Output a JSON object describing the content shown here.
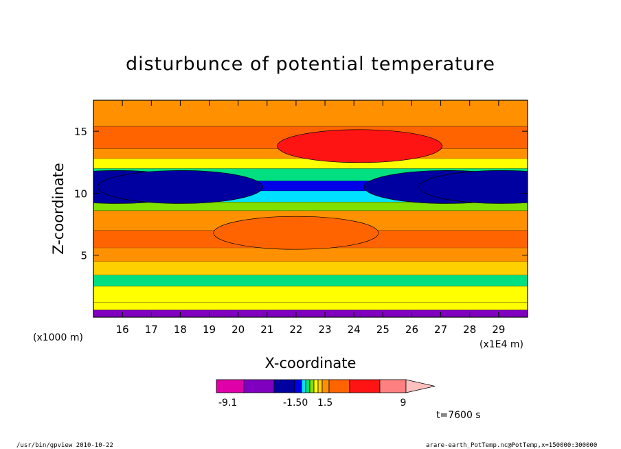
{
  "chart_data": {
    "type": "heatmap",
    "title": "disturbunce of potential temperature",
    "xlabel": "X-coordinate",
    "ylabel": "Z-coordinate",
    "xlim": [
      150000,
      300000
    ],
    "ylim": [
      0,
      17.5
    ],
    "x_ticks": [
      16,
      17,
      18,
      19,
      20,
      21,
      22,
      23,
      24,
      25,
      26,
      27,
      28,
      29
    ],
    "y_ticks": [
      5,
      10,
      15
    ],
    "x_unit": "(x1E4 m)",
    "y_unit": "(x1000 m)",
    "colorbar": {
      "labels": [
        "-9.1",
        "-1.50",
        "1.5",
        "9"
      ],
      "levels": [
        -9.1,
        -6,
        -4.5,
        -3,
        -1.5,
        -1.0,
        -0.5,
        0,
        0.5,
        1.0,
        1.5,
        3,
        4.5,
        6,
        9
      ],
      "colors": [
        "#e000a8",
        "#8000c0",
        "#0000a0",
        "#0000e8",
        "#00e0ff",
        "#00e080",
        "#80e000",
        "#ffff00",
        "#ffd000",
        "#ff9000",
        "#ff6400",
        "#ff1414",
        "#ff8080",
        "#ffc0c0"
      ]
    },
    "time_label": "t=7600 s",
    "bands": [
      {
        "z": 0.6,
        "value": -6.0
      },
      {
        "z": 1.2,
        "value": 0.2
      },
      {
        "z": 2.5,
        "value": 0.4
      },
      {
        "z": 3.4,
        "value": -0.7
      },
      {
        "z": 4.5,
        "value": 0.6
      },
      {
        "z": 5.6,
        "value": 1.2
      },
      {
        "z": 7.0,
        "value": 2.5
      },
      {
        "z": 8.6,
        "value": 1.1
      },
      {
        "z": 9.3,
        "value": -0.3
      },
      {
        "z": 10.2,
        "value": -1.2
      },
      {
        "z": 11.0,
        "value": -2.5
      },
      {
        "z": 12.0,
        "value": -1.0
      },
      {
        "z": 12.8,
        "value": 0.3
      },
      {
        "z": 13.6,
        "value": 1.3
      },
      {
        "z": 15.4,
        "value": 2.6
      },
      {
        "z": 17.5,
        "value": 1.0
      }
    ],
    "features": [
      {
        "x": 242000,
        "z": 13.8,
        "value": 3.0,
        "label": "central warm anomaly (upper)"
      },
      {
        "x": 220000,
        "z": 6.8,
        "value": 2.8,
        "label": "central warm anomaly (middle)"
      },
      {
        "x": 158000,
        "z": 10.5,
        "value": -4.5,
        "label": "cold core left"
      },
      {
        "x": 180000,
        "z": 10.5,
        "value": -4.0,
        "label": "cold core mid-left"
      },
      {
        "x": 272000,
        "z": 10.5,
        "value": -4.0,
        "label": "cold core mid-right"
      },
      {
        "x": 291000,
        "z": 10.5,
        "value": -4.5,
        "label": "cold core right"
      }
    ]
  },
  "footer": {
    "left": "/usr/bin/gpview   2010-10-22",
    "right": "arare-earth_PotTemp.nc@PotTemp,x=150000:300000"
  }
}
